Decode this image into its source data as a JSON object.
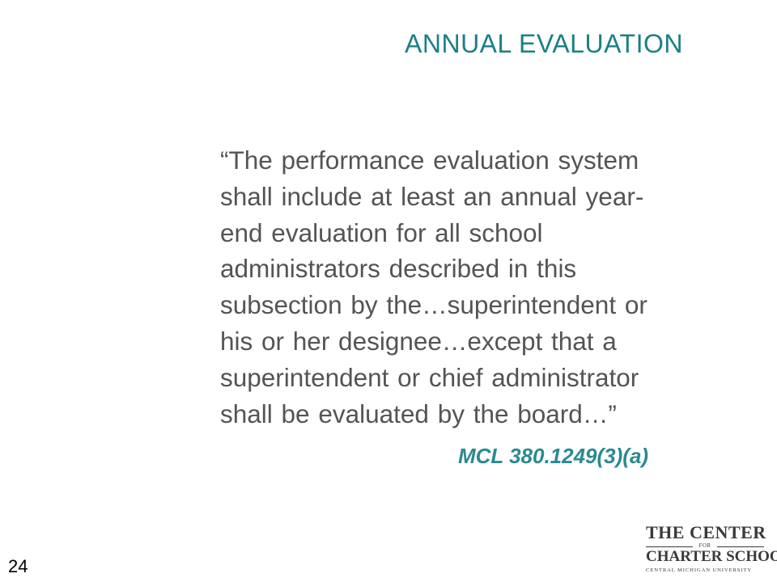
{
  "slide": {
    "title": "ANNUAL EVALUATION",
    "quote_lines": [
      "“The performance evaluation system",
      "shall include at least an annual year-",
      "end evaluation for all school",
      "administrators described in this",
      "subsection by the…superintendent or",
      "his or her designee…except that a",
      "superintendent or chief administrator",
      "shall be evaluated by the board…”"
    ],
    "citation": "MCL 380.1249(3)(a)",
    "page_number": "24"
  },
  "logo": {
    "line1": "THE CENTER",
    "for_text": "FOR",
    "line3": "CHARTER SCHOOLS",
    "line4": "CENTRAL MICHIGAN UNIVERSITY"
  },
  "colors": {
    "title": "#1b8085",
    "body_text": "#545454",
    "citation": "#2b8a90",
    "background": "#ffffff"
  }
}
